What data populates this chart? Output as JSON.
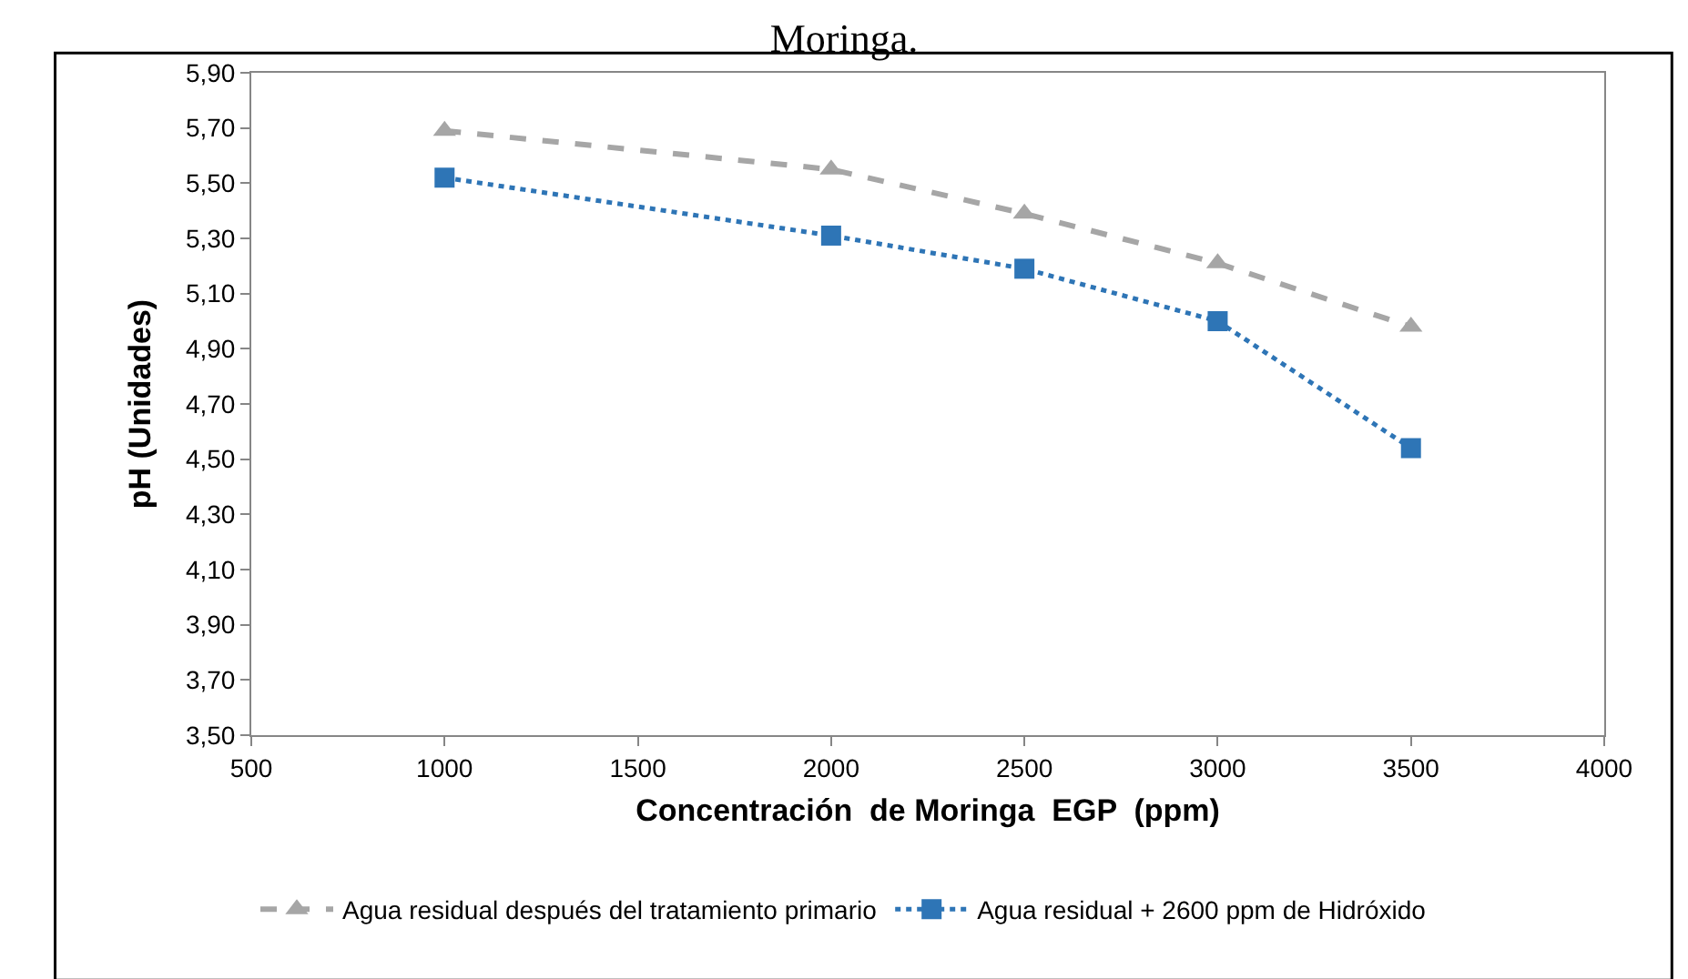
{
  "chart_data": {
    "type": "line",
    "title": "Moringa.",
    "xlabel": "Concentración  de Moringa  EGP  (ppm)",
    "ylabel": "pH (Unidades)",
    "x": [
      1000,
      2000,
      2500,
      3000,
      3500
    ],
    "series": [
      {
        "name": "Agua residual después del tratamiento primario",
        "color": "#a6a6a6",
        "marker": "triangle",
        "line_style": "dashed",
        "values": [
          5.69,
          5.55,
          5.39,
          5.21,
          4.98
        ]
      },
      {
        "name": "Agua residual + 2600 ppm de Hidróxido",
        "color": "#2e75b6",
        "marker": "square",
        "line_style": "dotted",
        "values": [
          5.52,
          5.31,
          5.19,
          5.0,
          4.54
        ]
      }
    ],
    "xlim": [
      500,
      4000
    ],
    "xticks": [
      500,
      1000,
      1500,
      2000,
      2500,
      3000,
      3500,
      4000
    ],
    "ylim": [
      3.5,
      5.9
    ],
    "yticks": [
      {
        "value": 3.5,
        "label": "3,50"
      },
      {
        "value": 3.7,
        "label": "3,70"
      },
      {
        "value": 3.9,
        "label": "3,90"
      },
      {
        "value": 4.1,
        "label": "4,10"
      },
      {
        "value": 4.3,
        "label": "4,30"
      },
      {
        "value": 4.5,
        "label": "4,50"
      },
      {
        "value": 4.7,
        "label": "4,70"
      },
      {
        "value": 4.9,
        "label": "4,90"
      },
      {
        "value": 5.1,
        "label": "5,10"
      },
      {
        "value": 5.3,
        "label": "5,30"
      },
      {
        "value": 5.5,
        "label": "5,50"
      },
      {
        "value": 5.7,
        "label": "5,70"
      },
      {
        "value": 5.9,
        "label": "5,90"
      }
    ],
    "grid": false,
    "legend": "bottom"
  }
}
